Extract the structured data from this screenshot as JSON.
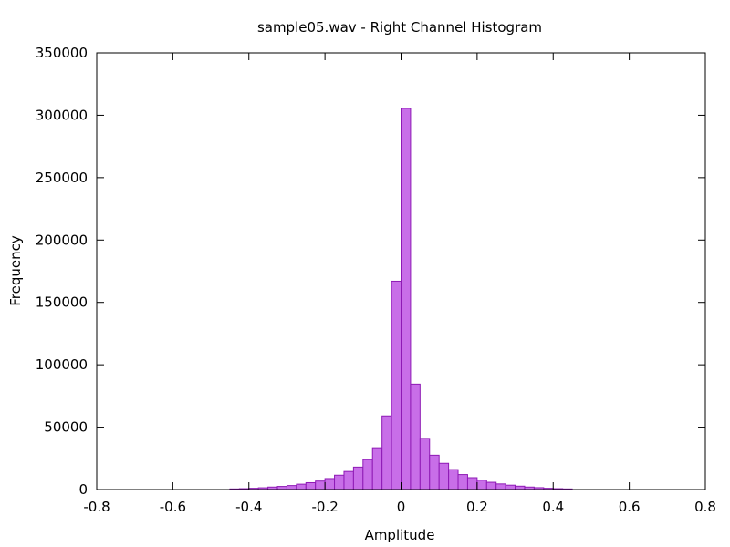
{
  "chart_data": {
    "type": "bar",
    "title": "sample05.wav - Right Channel Histogram",
    "xlabel": "Amplitude",
    "ylabel": "Frequency",
    "xlim": [
      -0.8,
      0.8
    ],
    "ylim": [
      0,
      350000
    ],
    "x_ticks": [
      -0.8,
      -0.6,
      -0.4,
      -0.2,
      0,
      0.2,
      0.4,
      0.6,
      0.8
    ],
    "x_tick_labels": [
      "-0.8",
      "-0.6",
      "-0.4",
      "-0.2",
      "0",
      "0.2",
      "0.4",
      "0.6",
      "0.8"
    ],
    "y_ticks": [
      0,
      50000,
      100000,
      150000,
      200000,
      250000,
      300000,
      350000
    ],
    "y_tick_labels": [
      "0",
      "50000",
      "100000",
      "150000",
      "200000",
      "250000",
      "300000",
      "350000"
    ],
    "bin_width": 0.025,
    "bin_centers": [
      -0.4375,
      -0.4125,
      -0.3875,
      -0.3625,
      -0.3375,
      -0.3125,
      -0.2875,
      -0.2625,
      -0.2375,
      -0.2125,
      -0.1875,
      -0.1625,
      -0.1375,
      -0.1125,
      -0.0875,
      -0.0625,
      -0.0375,
      -0.0125,
      0.0125,
      0.0375,
      0.0625,
      0.0875,
      0.1125,
      0.1375,
      0.1625,
      0.1875,
      0.2125,
      0.2375,
      0.2625,
      0.2875,
      0.3125,
      0.3375,
      0.3625,
      0.3875,
      0.4125,
      0.4375
    ],
    "values": [
      500,
      700,
      1000,
      1400,
      2000,
      2500,
      3200,
      4300,
      5500,
      6800,
      8800,
      11500,
      14500,
      18000,
      24000,
      33500,
      59000,
      167000,
      305500,
      84500,
      41000,
      27500,
      21000,
      16000,
      12000,
      9500,
      7500,
      5800,
      4500,
      3500,
      2700,
      2000,
      1500,
      1000,
      700,
      500
    ],
    "bar_fill": "#c86ee8",
    "bar_stroke": "#8e1ab5",
    "grid": false
  }
}
